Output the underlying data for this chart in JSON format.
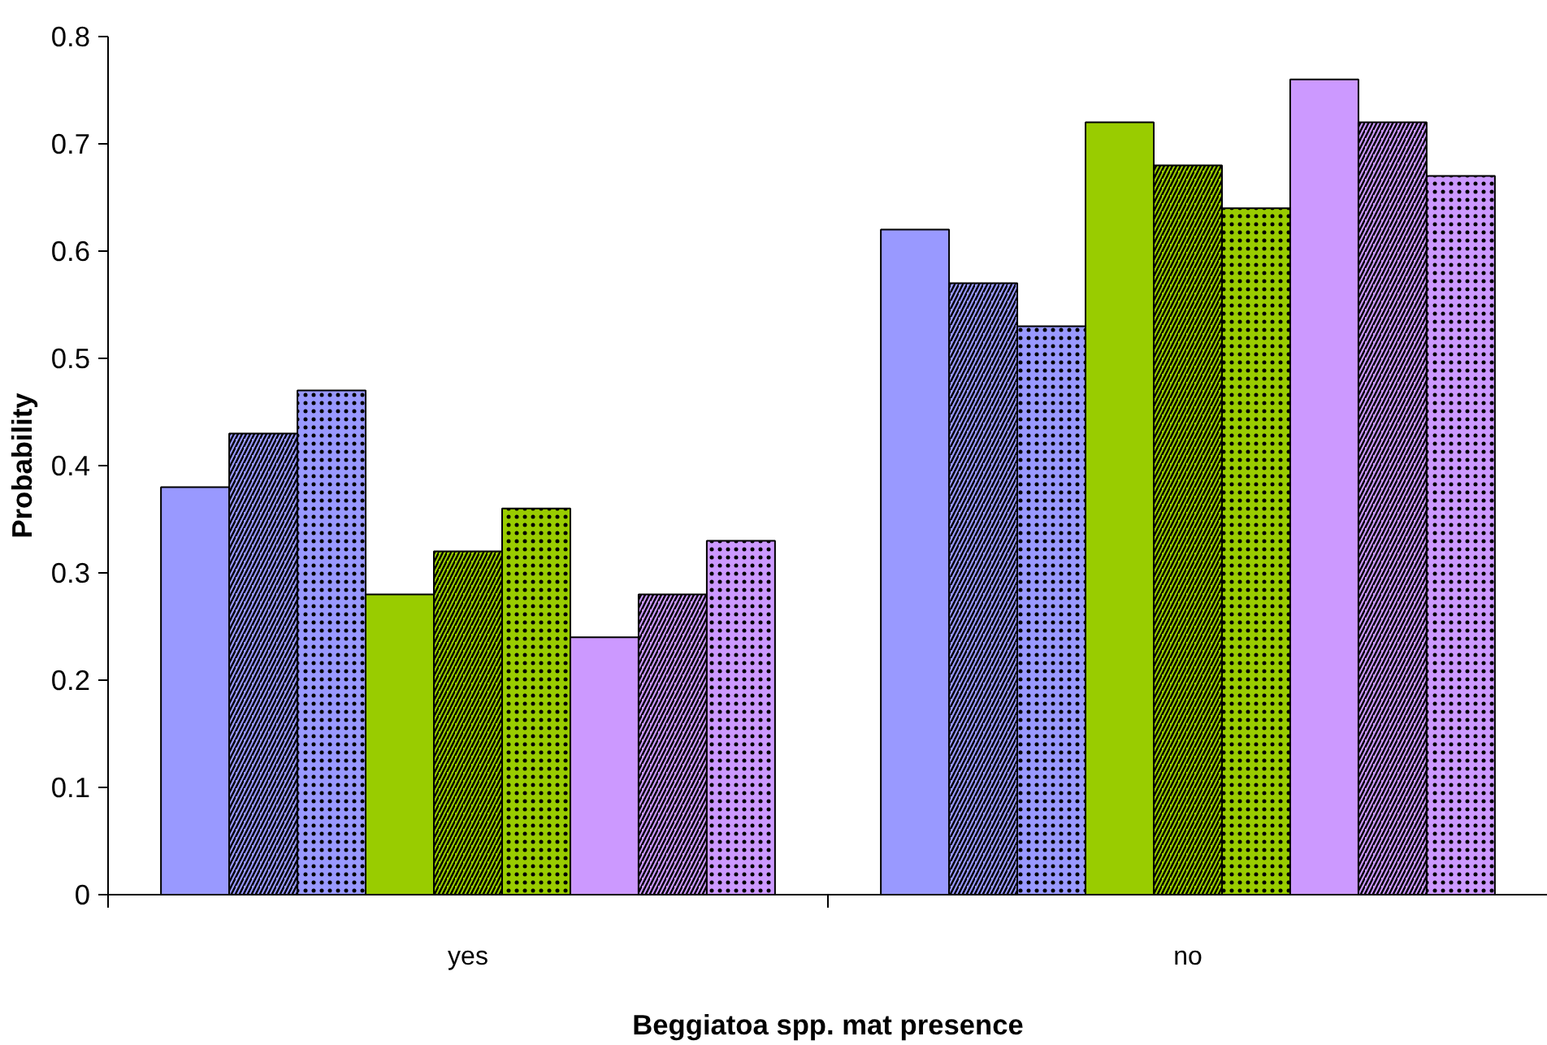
{
  "chart_data": {
    "type": "bar",
    "xlabel": "Beggiatoa spp. mat presence",
    "ylabel": "Probability",
    "categories": [
      "yes",
      "no"
    ],
    "series": [
      {
        "color": "#9999ff",
        "values": [
          0.38,
          0.62
        ]
      },
      {
        "color": "#9999ff",
        "values": [
          0.43,
          0.57
        ]
      },
      {
        "color": "#9999ff",
        "values": [
          0.47,
          0.53
        ]
      },
      {
        "color": "#99cc00",
        "values": [
          0.28,
          0.72
        ]
      },
      {
        "color": "#99cc00",
        "values": [
          0.32,
          0.68
        ]
      },
      {
        "color": "#99cc00",
        "values": [
          0.36,
          0.64
        ]
      },
      {
        "color": "#cc99ff",
        "values": [
          0.24,
          0.76
        ]
      },
      {
        "color": "#cc99ff",
        "values": [
          0.28,
          0.72
        ]
      },
      {
        "color": "#cc99ff",
        "values": [
          0.33,
          0.67
        ]
      }
    ],
    "ylim": [
      0,
      0.8
    ],
    "yticks": [
      0,
      0.1,
      0.2,
      0.3,
      0.4,
      0.5,
      0.6,
      0.7,
      0.8
    ],
    "grid": false
  }
}
